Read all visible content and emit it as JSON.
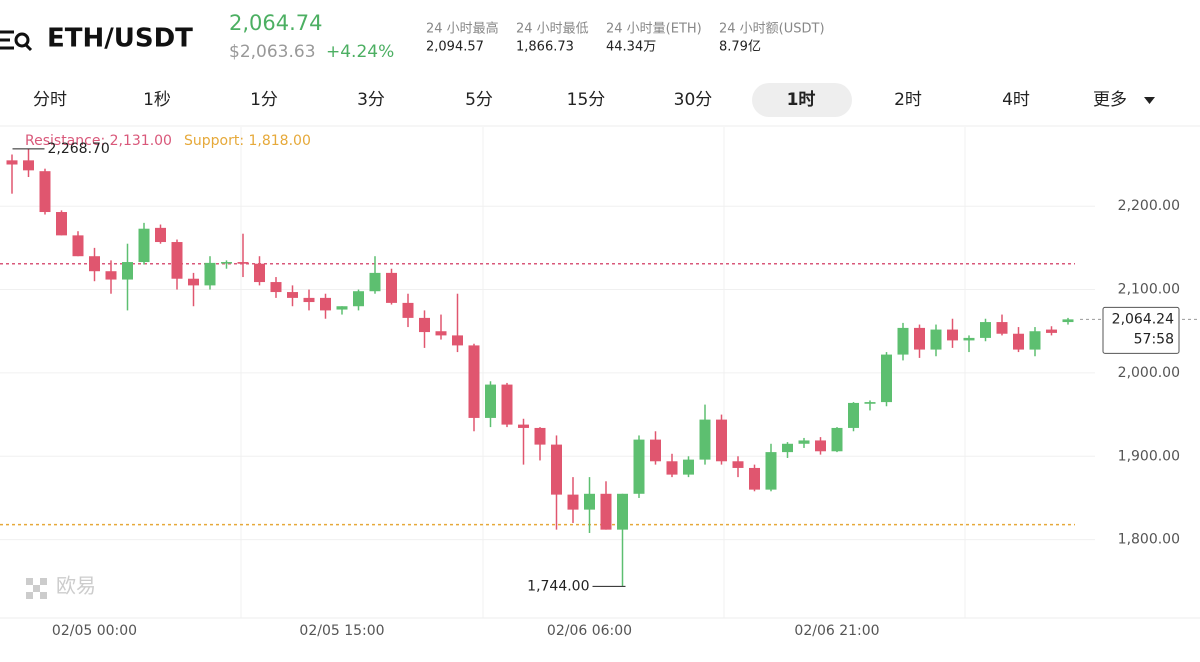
{
  "header": {
    "pair": "ETH/USDT",
    "price": "2,064.74",
    "fiat_price": "$2,063.63",
    "change": "+4.24%",
    "stats": [
      {
        "label": "24 小时最高",
        "value": "2,094.57"
      },
      {
        "label": "24 小时最低",
        "value": "1,866.73"
      },
      {
        "label": "24 小时量(ETH)",
        "value": "44.34万"
      },
      {
        "label": "24 小时额(USDT)",
        "value": "8.79亿"
      }
    ]
  },
  "tabs": [
    "分时",
    "1秒",
    "1分",
    "3分",
    "5分",
    "15分",
    "30分",
    "1时",
    "2时",
    "4时",
    "更多"
  ],
  "active_tab": "1时",
  "watermark": "欧易",
  "chart_data": {
    "type": "candlestick",
    "categories": [
      null,
      null,
      null,
      null,
      null,
      "02/05 00:00",
      null,
      null,
      null,
      null,
      null,
      null,
      null,
      null,
      null,
      null,
      null,
      null,
      null,
      null,
      "02/05 15:00",
      null,
      null,
      null,
      null,
      null,
      null,
      null,
      null,
      null,
      null,
      null,
      null,
      null,
      null,
      "02/06 06:00",
      null,
      null,
      null,
      null,
      null,
      null,
      null,
      null,
      null,
      null,
      null,
      null,
      null,
      null,
      "02/06 21:00",
      null,
      null,
      null,
      null,
      null,
      null,
      null,
      null,
      null,
      null,
      null,
      null,
      null,
      null
    ],
    "open": [
      2255,
      2255,
      2242,
      2193,
      2165,
      2140,
      2122,
      2112,
      2133,
      2174,
      2157,
      2113,
      2105,
      2132,
      2133,
      2131,
      2109,
      2097,
      2090,
      2090,
      2076,
      2080,
      2098,
      2120,
      2084,
      2066,
      2050,
      2045,
      2033,
      1946,
      1986,
      1938,
      1934,
      1914,
      1854,
      1836,
      1855,
      1812,
      1855,
      1920,
      1894,
      1878,
      1896,
      1944,
      1894,
      1886,
      1860,
      1905,
      1915,
      1919,
      1906,
      1934,
      1963,
      1965,
      2022,
      2054,
      2028,
      2052,
      2039,
      2042,
      2061,
      2047,
      2028,
      2052,
      2061
    ],
    "high": [
      2262,
      2268.7,
      2245,
      2195,
      2170,
      2150,
      2135,
      2155,
      2180,
      2178,
      2160,
      2120,
      2140,
      2135,
      2167,
      2140,
      2115,
      2105,
      2100,
      2095,
      2080,
      2100,
      2140,
      2125,
      2095,
      2075,
      2070,
      2095,
      2035,
      1990,
      1988,
      1945,
      1935,
      1925,
      1875,
      1875,
      1870,
      1855,
      1925,
      1930,
      1903,
      1900,
      1962,
      1950,
      1900,
      1890,
      1915,
      1917,
      1922,
      1923,
      1935,
      1965,
      1967,
      2025,
      2060,
      2058,
      2058,
      2065,
      2045,
      2065,
      2070,
      2055,
      2055,
      2056,
      2066
    ],
    "low": [
      2215,
      2235,
      2190,
      2165,
      2140,
      2110,
      2095,
      2075,
      2130,
      2155,
      2100,
      2080,
      2100,
      2125,
      2115,
      2105,
      2090,
      2080,
      2075,
      2065,
      2070,
      2075,
      2095,
      2082,
      2055,
      2030,
      2040,
      2025,
      1930,
      1935,
      1935,
      1890,
      1895,
      1812,
      1820,
      1808,
      1812,
      1744,
      1850,
      1890,
      1875,
      1875,
      1890,
      1890,
      1875,
      1858,
      1858,
      1898,
      1910,
      1902,
      1905,
      1930,
      1955,
      1960,
      2015,
      2018,
      2020,
      2030,
      2025,
      2038,
      2045,
      2025,
      2020,
      2045,
      2058
    ],
    "close": [
      2250,
      2243,
      2193,
      2165,
      2140,
      2122,
      2112,
      2133,
      2173,
      2157,
      2113,
      2105,
      2132,
      2133,
      2131,
      2109,
      2097,
      2090,
      2085,
      2075,
      2080,
      2098,
      2120,
      2084,
      2066,
      2049,
      2045,
      2033,
      1946,
      1986,
      1938,
      1934,
      1914,
      1854,
      1836,
      1855,
      1812,
      1855,
      1920,
      1894,
      1878,
      1896,
      1944,
      1894,
      1886,
      1860,
      1905,
      1915,
      1919,
      1906,
      1934,
      1964,
      1965,
      2022,
      2054,
      2028,
      2052,
      2039,
      2042,
      2061,
      2047,
      2028,
      2050,
      2048,
      2064.24
    ],
    "up_color": "#5dbf70",
    "down_color": "#e0566f",
    "ylim": [
      1706,
      2295
    ],
    "yticks": [
      {
        "value": 1800,
        "label": "1,800.00"
      },
      {
        "value": 1900,
        "label": "1,900.00"
      },
      {
        "value": 2000,
        "label": "2,000.00"
      },
      {
        "value": 2100,
        "label": "2,100.00"
      },
      {
        "value": 2200,
        "label": "2,200.00"
      }
    ],
    "resistance": {
      "label": "Resistance: 2,131.00",
      "value": 2131,
      "color": "#d9587a"
    },
    "support": {
      "label": "Support: 1,818.00",
      "value": 1818,
      "color": "#e6a93a"
    },
    "annotations": [
      {
        "text": "2,268.70",
        "value": 2268.7
      },
      {
        "text": "1,744.00",
        "value": 1744
      }
    ],
    "last_price": {
      "label": "2,064.24",
      "value": 2064.24
    },
    "countdown": "57:58"
  }
}
